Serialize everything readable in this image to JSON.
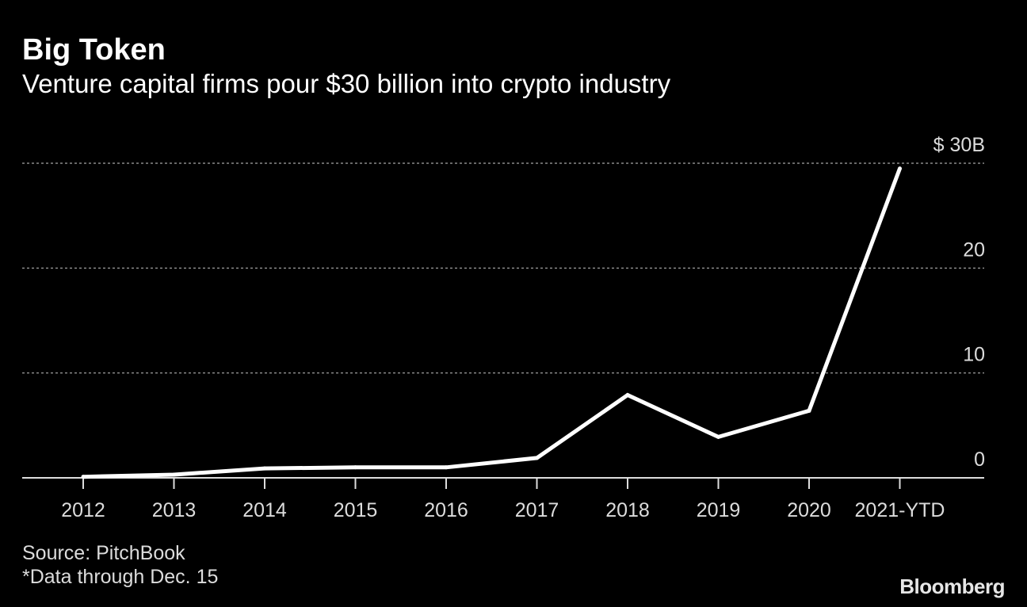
{
  "header": {
    "title": "Big Token",
    "subtitle": "Venture capital firms pour $30 billion into crypto industry"
  },
  "chart_data": {
    "type": "line",
    "x": [
      "2012",
      "2013",
      "2014",
      "2015",
      "2016",
      "2017",
      "2018",
      "2019",
      "2020",
      "2021-YTD"
    ],
    "series": [
      {
        "values": [
          0.1,
          0.3,
          0.9,
          1.0,
          1.0,
          1.9,
          7.9,
          3.9,
          6.4,
          29.5
        ]
      }
    ],
    "y_ticks": [
      {
        "value": 0,
        "label": "0"
      },
      {
        "value": 10,
        "label": "10"
      },
      {
        "value": 20,
        "label": "20"
      },
      {
        "value": 30,
        "label": "$ 30B"
      }
    ],
    "ylim": [
      0,
      30
    ],
    "grid": true,
    "y_axis_side": "right",
    "colors": {
      "background": "#000000",
      "line": "#ffffff",
      "grid": "#8a8a8a",
      "axis": "#dddddd",
      "tick_label": "#dcdcdc"
    }
  },
  "footer": {
    "source": "Source: PitchBook",
    "note": "*Data through Dec. 15",
    "brand": "Bloomberg"
  }
}
